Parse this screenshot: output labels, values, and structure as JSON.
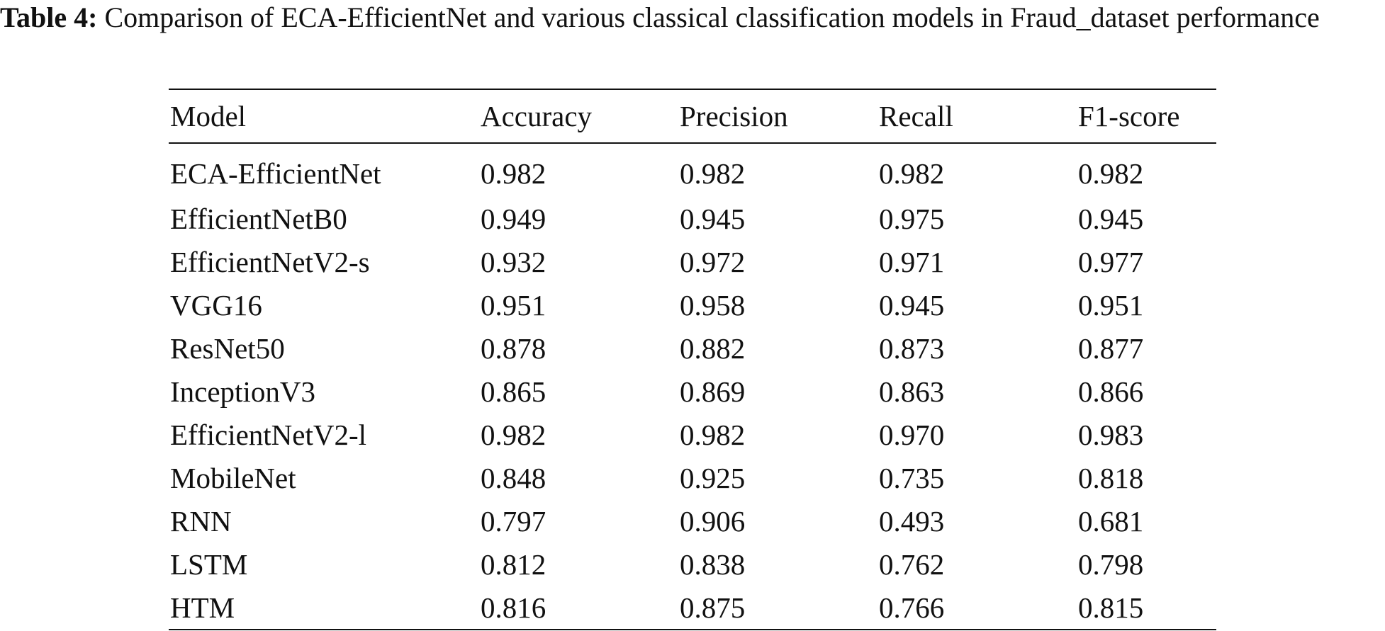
{
  "caption": {
    "label": "Table 4:",
    "text": " Comparison of ECA-EfficientNet and various classical classification models in Fraud_dataset performance"
  },
  "table": {
    "headers": [
      "Model",
      "Accuracy",
      "Precision",
      "Recall",
      "F1-score"
    ],
    "rows": [
      [
        "ECA-EfficientNet",
        "0.982",
        "0.982",
        "0.982",
        "0.982"
      ],
      [
        "EfficientNetB0",
        "0.949",
        "0.945",
        "0.975",
        "0.945"
      ],
      [
        "EfficientNetV2-s",
        "0.932",
        "0.972",
        "0.971",
        "0.977"
      ],
      [
        "VGG16",
        "0.951",
        "0.958",
        "0.945",
        "0.951"
      ],
      [
        "ResNet50",
        "0.878",
        "0.882",
        "0.873",
        "0.877"
      ],
      [
        "InceptionV3",
        "0.865",
        "0.869",
        "0.863",
        "0.866"
      ],
      [
        "EfficientNetV2-l",
        "0.982",
        "0.982",
        "0.970",
        "0.983"
      ],
      [
        "MobileNet",
        "0.848",
        "0.925",
        "0.735",
        "0.818"
      ],
      [
        "RNN",
        "0.797",
        "0.906",
        "0.493",
        "0.681"
      ],
      [
        "LSTM",
        "0.812",
        "0.838",
        "0.762",
        "0.798"
      ],
      [
        "HTM",
        "0.816",
        "0.875",
        "0.766",
        "0.815"
      ]
    ]
  }
}
